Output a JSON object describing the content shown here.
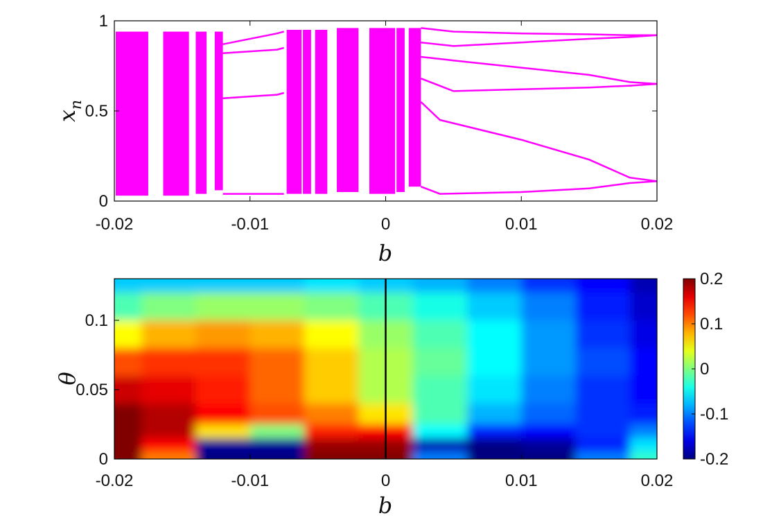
{
  "chart_data": [
    {
      "type": "scatter",
      "title": "",
      "xlabel": "b",
      "ylabel": "x_n",
      "ylabel_parts": {
        "base": "x",
        "sub": "n"
      },
      "xlim": [
        -0.02,
        0.02
      ],
      "ylim": [
        0,
        1
      ],
      "xticks": [
        -0.02,
        -0.01,
        0,
        0.01,
        0.02
      ],
      "xtick_labels": [
        "-0.02",
        "-0.01",
        "0",
        "0.01",
        "0.02"
      ],
      "yticks": [
        0,
        0.5,
        1
      ],
      "ytick_labels": [
        "0",
        "0.5",
        "1"
      ],
      "grid": false,
      "marker_color": "#ff00ff",
      "chaotic_bands": [
        {
          "b_range": [
            -0.0199,
            -0.0175
          ],
          "x_range": [
            0.03,
            0.94
          ]
        },
        {
          "b_range": [
            -0.0164,
            -0.0145
          ],
          "x_range": [
            0.03,
            0.94
          ]
        },
        {
          "b_range": [
            -0.014,
            -0.0132
          ],
          "x_range": [
            0.04,
            0.94
          ]
        },
        {
          "b_range": [
            -0.0126,
            -0.012
          ],
          "x_range": [
            0.06,
            0.94
          ]
        },
        {
          "b_range": [
            -0.0073,
            -0.0062
          ],
          "x_range": [
            0.04,
            0.95
          ]
        },
        {
          "b_range": [
            -0.0061,
            -0.0055
          ],
          "x_range": [
            0.04,
            0.95
          ]
        },
        {
          "b_range": [
            -0.0052,
            -0.0043
          ],
          "x_range": [
            0.04,
            0.95
          ]
        },
        {
          "b_range": [
            -0.0036,
            -0.002
          ],
          "x_range": [
            0.05,
            0.96
          ]
        },
        {
          "b_range": [
            -0.0012,
            0.0007
          ],
          "x_range": [
            0.04,
            0.96
          ]
        },
        {
          "b_range": [
            0.0008,
            0.0014
          ],
          "x_range": [
            0.05,
            0.96
          ]
        },
        {
          "b_range": [
            0.0017,
            0.0026
          ],
          "x_range": [
            0.08,
            0.96
          ]
        }
      ],
      "periodic_branches": [
        [
          [
            -0.012,
            0.87
          ],
          [
            -0.008,
            0.93
          ],
          [
            -0.0075,
            0.94
          ]
        ],
        [
          [
            -0.012,
            0.82
          ],
          [
            -0.008,
            0.84
          ],
          [
            -0.0075,
            0.85
          ]
        ],
        [
          [
            -0.012,
            0.57
          ],
          [
            -0.008,
            0.59
          ],
          [
            -0.0075,
            0.6
          ]
        ],
        [
          [
            -0.012,
            0.04
          ],
          [
            -0.008,
            0.04
          ],
          [
            -0.0075,
            0.04
          ]
        ],
        [
          [
            0.0026,
            0.96
          ],
          [
            0.005,
            0.94
          ],
          [
            0.01,
            0.93
          ],
          [
            0.015,
            0.925
          ],
          [
            0.018,
            0.92
          ],
          [
            0.02,
            0.92
          ]
        ],
        [
          [
            0.0026,
            0.88
          ],
          [
            0.005,
            0.86
          ],
          [
            0.01,
            0.88
          ],
          [
            0.015,
            0.9
          ],
          [
            0.018,
            0.91
          ],
          [
            0.02,
            0.92
          ]
        ],
        [
          [
            0.0026,
            0.8
          ],
          [
            0.005,
            0.78
          ],
          [
            0.01,
            0.74
          ],
          [
            0.015,
            0.7
          ],
          [
            0.018,
            0.66
          ],
          [
            0.02,
            0.65
          ]
        ],
        [
          [
            0.0026,
            0.68
          ],
          [
            0.005,
            0.61
          ],
          [
            0.01,
            0.62
          ],
          [
            0.015,
            0.63
          ],
          [
            0.018,
            0.64
          ],
          [
            0.02,
            0.65
          ]
        ],
        [
          [
            0.0026,
            0.55
          ],
          [
            0.004,
            0.45
          ],
          [
            0.01,
            0.34
          ],
          [
            0.015,
            0.23
          ],
          [
            0.018,
            0.13
          ],
          [
            0.02,
            0.11
          ]
        ],
        [
          [
            0.0026,
            0.08
          ],
          [
            0.004,
            0.04
          ],
          [
            0.01,
            0.05
          ],
          [
            0.015,
            0.07
          ],
          [
            0.018,
            0.1
          ],
          [
            0.02,
            0.11
          ]
        ]
      ]
    },
    {
      "type": "heatmap",
      "title": "",
      "xlabel": "b",
      "ylabel": "θ",
      "xlim": [
        -0.02,
        0.02
      ],
      "ylim": [
        0,
        0.13
      ],
      "xticks": [
        -0.02,
        -0.01,
        0,
        0.01,
        0.02
      ],
      "xtick_labels": [
        "-0.02",
        "-0.01",
        "0",
        "0.01",
        "0.02"
      ],
      "yticks": [
        0,
        0.05,
        0.1
      ],
      "ytick_labels": [
        "0",
        "0.05",
        "0.1"
      ],
      "colormap": "jet",
      "clim": [
        -0.2,
        0.2
      ],
      "colorbar_ticks": [
        -0.2,
        -0.1,
        0,
        0.1,
        0.2
      ],
      "colorbar_tick_labels": [
        "-0.2",
        "-0.1",
        "0",
        "0.1",
        "0.2"
      ],
      "vertical_line_b": 0,
      "value_grid_rows_theta": [
        0.13,
        0.11,
        0.09,
        0.07,
        0.05,
        0.03,
        0.02,
        0.01,
        0.0
      ],
      "value_grid_cols_b": [
        -0.02,
        -0.016,
        -0.012,
        -0.008,
        -0.004,
        0,
        0.004,
        0.008,
        0.012,
        0.016,
        0.02
      ],
      "value_grid": [
        [
          -0.07,
          -0.07,
          -0.07,
          -0.07,
          -0.06,
          -0.07,
          -0.08,
          -0.1,
          -0.13,
          -0.15,
          -0.18
        ],
        [
          -0.02,
          0.0,
          0.01,
          0.01,
          0.0,
          -0.02,
          -0.04,
          -0.07,
          -0.1,
          -0.14,
          -0.17
        ],
        [
          0.05,
          0.08,
          0.09,
          0.08,
          0.05,
          0.01,
          -0.02,
          -0.05,
          -0.09,
          -0.13,
          -0.16
        ],
        [
          0.12,
          0.13,
          0.13,
          0.11,
          0.07,
          0.02,
          -0.01,
          -0.05,
          -0.09,
          -0.12,
          -0.15
        ],
        [
          0.17,
          0.16,
          0.14,
          0.11,
          0.07,
          0.02,
          -0.02,
          -0.06,
          -0.1,
          -0.13,
          -0.15
        ],
        [
          0.2,
          0.18,
          0.15,
          0.12,
          0.1,
          0.06,
          -0.02,
          -0.08,
          -0.11,
          -0.13,
          -0.14
        ],
        [
          0.2,
          0.18,
          0.06,
          0.0,
          0.14,
          0.15,
          -0.05,
          -0.14,
          -0.15,
          -0.13,
          -0.1
        ],
        [
          0.2,
          0.15,
          -0.19,
          -0.19,
          0.19,
          0.19,
          -0.18,
          -0.2,
          -0.19,
          -0.14,
          -0.06
        ],
        [
          0.2,
          0.1,
          -0.2,
          -0.2,
          0.2,
          0.2,
          -0.1,
          -0.2,
          -0.2,
          -0.1,
          -0.03
        ]
      ]
    }
  ]
}
